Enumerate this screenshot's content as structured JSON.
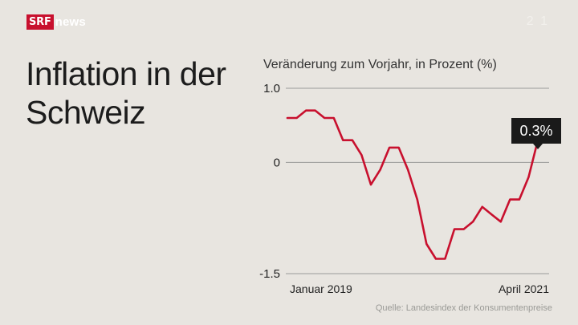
{
  "header": {
    "logo_text": "SRF",
    "logo_word": "news",
    "watermark_text": "2 1"
  },
  "headline": "Inflation in der Schweiz",
  "source": "Quelle: Landesindex der Konsumentenpreise",
  "colors": {
    "background": "#e8e5e0",
    "line": "#c8102e",
    "label_bg": "#1a1a1a",
    "grid": "#9a9a9a"
  },
  "chart_data": {
    "type": "line",
    "title": "Veränderung zum Vorjahr, in Prozent (%)",
    "ylim": [
      -1.5,
      1.0
    ],
    "yticks": [
      "1.0",
      "0",
      "-1.5"
    ],
    "ytick_values": [
      1.0,
      0,
      -1.5
    ],
    "grid": true,
    "x_labels": [
      "Januar 2019",
      "April 2021"
    ],
    "x": [
      "2019-01",
      "2019-02",
      "2019-03",
      "2019-04",
      "2019-05",
      "2019-06",
      "2019-07",
      "2019-08",
      "2019-09",
      "2019-10",
      "2019-11",
      "2019-12",
      "2020-01",
      "2020-02",
      "2020-03",
      "2020-04",
      "2020-05",
      "2020-06",
      "2020-07",
      "2020-08",
      "2020-09",
      "2020-10",
      "2020-11",
      "2020-12",
      "2021-01",
      "2021-02",
      "2021-03",
      "2021-04"
    ],
    "values": [
      0.6,
      0.6,
      0.7,
      0.7,
      0.6,
      0.6,
      0.3,
      0.3,
      0.1,
      -0.3,
      -0.1,
      0.2,
      0.2,
      -0.1,
      -0.5,
      -1.1,
      -1.3,
      -1.3,
      -0.9,
      -0.9,
      -0.8,
      -0.6,
      -0.7,
      -0.8,
      -0.5,
      -0.5,
      -0.2,
      0.3
    ],
    "annotation": "0.3%"
  }
}
